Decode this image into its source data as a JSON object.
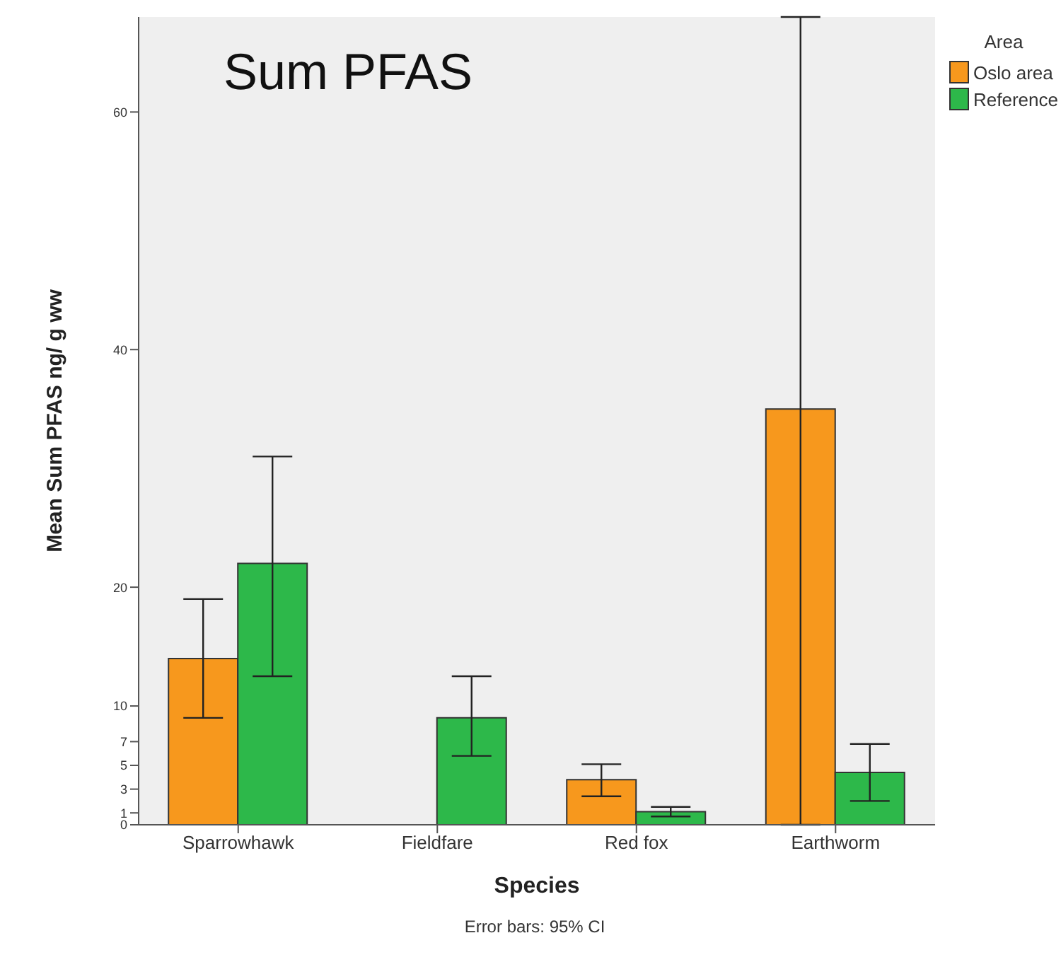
{
  "chart_data": {
    "type": "bar",
    "title": "Sum PFAS",
    "xlabel": "Species",
    "ylabel": "Mean Sum PFAS  ng/ g ww",
    "legend_title": "Area",
    "legend": "top right",
    "annotations": [
      "Error bars: 95% CI"
    ],
    "categories": [
      "Sparrowhawk",
      "Fieldfare",
      "Red fox",
      "Earthworm"
    ],
    "series": [
      {
        "name": "Oslo area",
        "color": "#f7981d",
        "values": [
          14,
          null,
          3.8,
          35
        ],
        "errors": [
          [
            9,
            19
          ],
          null,
          [
            2.4,
            5.1
          ],
          [
            0,
            68
          ]
        ]
      },
      {
        "name": "Reference",
        "color": "#2db84a",
        "values": [
          22,
          9,
          1.1,
          4.4
        ],
        "errors": [
          [
            12.5,
            31
          ],
          [
            5.8,
            12.5
          ],
          [
            0.7,
            1.5
          ],
          [
            2,
            6.8
          ]
        ]
      }
    ],
    "ylim": [
      0,
      68
    ],
    "yticks": [
      0,
      1,
      3,
      5,
      7,
      10,
      20,
      40,
      60
    ]
  }
}
